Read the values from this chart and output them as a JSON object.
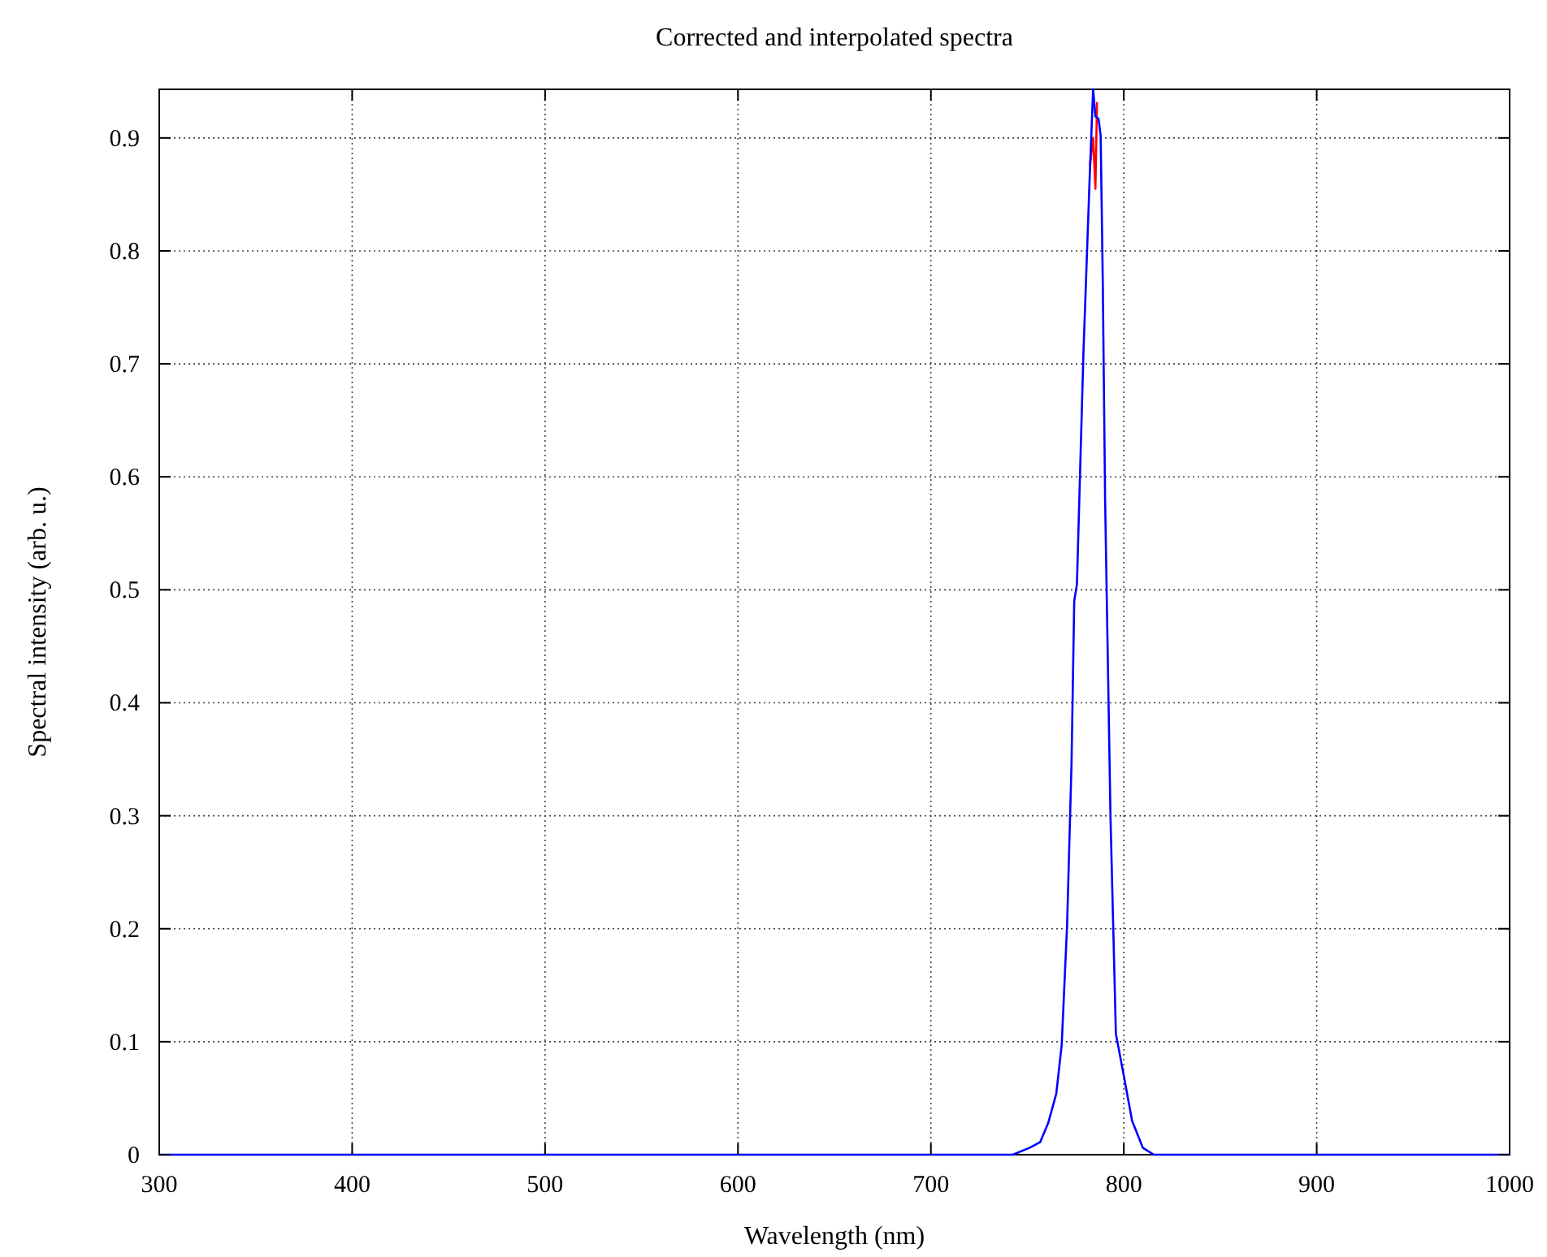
{
  "chart_data": {
    "type": "line",
    "title": "Corrected and interpolated spectra",
    "xlabel": "Wavelength (nm)",
    "ylabel": "Spectral intensity (arb. u.)",
    "xlim": [
      300,
      1000
    ],
    "ylim": [
      0,
      0.943
    ],
    "xticks": [
      300,
      400,
      500,
      600,
      700,
      800,
      900,
      1000
    ],
    "yticks": [
      0,
      0.1,
      0.2,
      0.3,
      0.4,
      0.5,
      0.6,
      0.7,
      0.8,
      0.9
    ],
    "grid": true,
    "marker": "none",
    "line_style": "solid",
    "series": [
      {
        "color": "#ff0000",
        "x": [
          782.5,
          784.1,
          785.3,
          786.1
        ],
        "values": [
          0.876,
          0.9,
          0.855,
          0.931
        ]
      },
      {
        "color": "#0000ff",
        "x": [
          300,
          742.5,
          751,
          756.6,
          760.8,
          765,
          767.8,
          770.6,
          772.9,
          774.3,
          775.7,
          779.1,
          780.4,
          782.5,
          784.1,
          785.3,
          786.9,
          788.0,
          789.1,
          790.3,
          791.2,
          793.1,
          795.9,
          800.1,
          804.3,
          809.9,
          815.6,
          1000
        ],
        "values": [
          0,
          0,
          0.006,
          0.011,
          0.028,
          0.054,
          0.097,
          0.203,
          0.346,
          0.49,
          0.505,
          0.711,
          0.773,
          0.874,
          0.943,
          0.919,
          0.917,
          0.902,
          0.773,
          0.581,
          0.49,
          0.299,
          0.107,
          0.069,
          0.03,
          0.006,
          0,
          0
        ]
      }
    ]
  }
}
